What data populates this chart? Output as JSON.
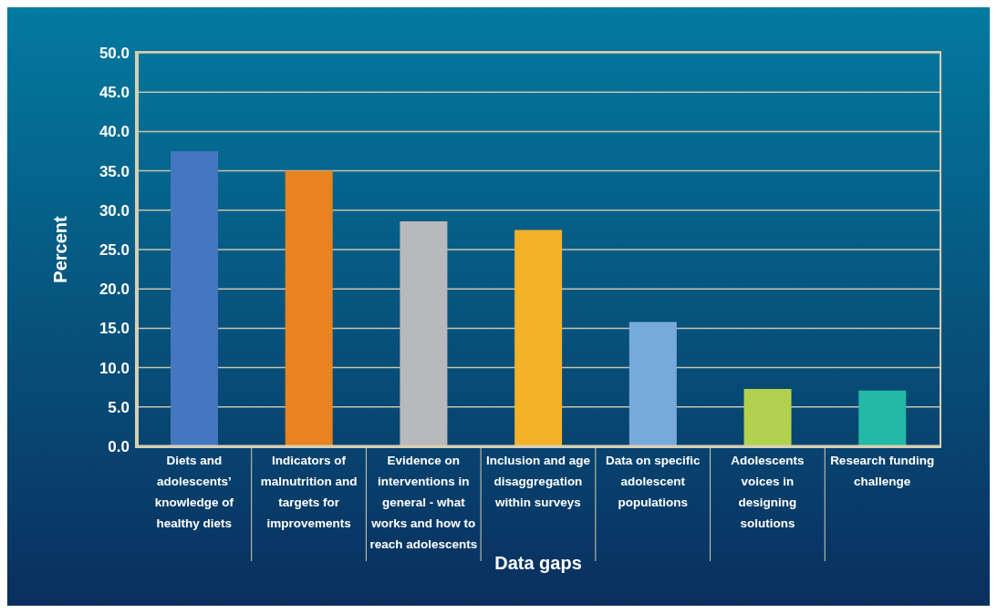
{
  "chart_data": {
    "type": "bar",
    "xlabel": "Data gaps",
    "ylabel": "Percent",
    "categories": [
      "Diets and adolescents’ knowledge of healthy diets",
      "Indicators of malnutrition and targets for improvements",
      "Evidence on interventions in general - what works and how to reach adolescents",
      "Inclusion and age disaggregation within surveys",
      "Data on specific adolescent populations",
      "Adolescents voices in designing solutions",
      "Research funding challenge"
    ],
    "values": [
      37.5,
      35.0,
      28.6,
      27.5,
      15.8,
      7.3,
      7.1
    ],
    "colors": [
      "#4577c0",
      "#e8831f",
      "#b8b9bc",
      "#f4b226",
      "#77aadc",
      "#b2d24f",
      "#22b9a5"
    ],
    "ylim": [
      0,
      50
    ],
    "yticks": [
      {
        "value": 0,
        "label": "0.0"
      },
      {
        "value": 5,
        "label": "5.0"
      },
      {
        "value": 10,
        "label": "10.0"
      },
      {
        "value": 15,
        "label": "15.0"
      },
      {
        "value": 20,
        "label": "20.0"
      },
      {
        "value": 25,
        "label": "25.0"
      },
      {
        "value": 30,
        "label": "30.0"
      },
      {
        "value": 35,
        "label": "35.0"
      },
      {
        "value": 40,
        "label": "40.0"
      },
      {
        "value": 45,
        "label": "45.0"
      },
      {
        "value": 50,
        "label": "50.0"
      }
    ],
    "grid": true
  }
}
